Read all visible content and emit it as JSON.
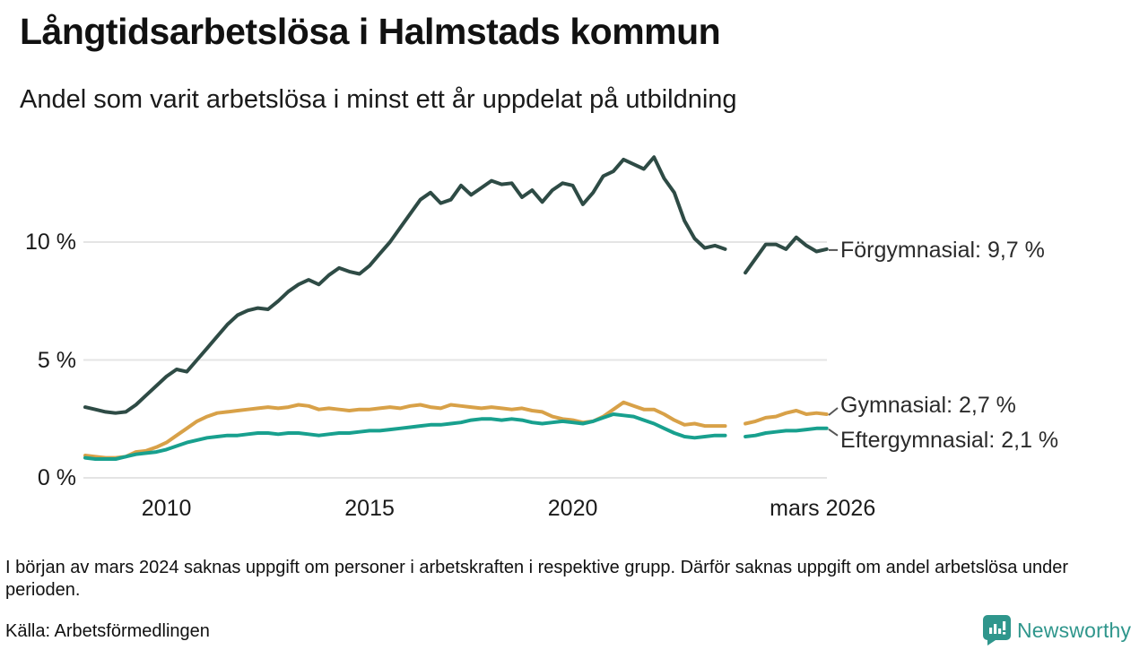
{
  "header": {
    "title": "Långtidsarbetslösa i Halmstads kommun",
    "subtitle": "Andel som varit arbetslösa i minst ett år uppdelat på utbildning"
  },
  "chart_data": {
    "type": "line",
    "x_axis": {
      "unit": "year",
      "start": 2008.0,
      "step": 0.25,
      "end": 2026.25,
      "ticks": [
        {
          "value": 2010,
          "label": "2010"
        },
        {
          "value": 2015,
          "label": "2015"
        },
        {
          "value": 2020,
          "label": "2020"
        },
        {
          "value": 2026.15,
          "label": "mars 2026"
        }
      ]
    },
    "y_axis": {
      "unit": "%",
      "min": 0,
      "max": 14.2,
      "ticks": [
        {
          "value": 0,
          "label": "0 %"
        },
        {
          "value": 5,
          "label": "5 %"
        },
        {
          "value": 10,
          "label": "10 %"
        }
      ]
    },
    "grid": "horizontal",
    "gap_note": "values are null for early 2024 where data is missing",
    "series": [
      {
        "name": "Förgymnasial",
        "end_label": "Förgymnasial: 9,7 %",
        "end_value": "9,7 %",
        "color": "#2e4b45",
        "values": [
          3.0,
          2.9,
          2.8,
          2.75,
          2.8,
          3.1,
          3.5,
          3.9,
          4.3,
          4.6,
          4.5,
          5.0,
          5.5,
          6.0,
          6.5,
          6.9,
          7.1,
          7.2,
          7.15,
          7.5,
          7.9,
          8.2,
          8.4,
          8.2,
          8.6,
          8.9,
          8.75,
          8.65,
          9.0,
          9.5,
          10.0,
          10.6,
          11.2,
          11.8,
          12.1,
          11.65,
          11.8,
          12.4,
          12.0,
          12.3,
          12.6,
          12.45,
          12.5,
          11.9,
          12.2,
          11.7,
          12.2,
          12.5,
          12.4,
          11.6,
          12.1,
          12.8,
          13.0,
          13.5,
          13.3,
          13.1,
          13.6,
          12.7,
          12.1,
          10.9,
          10.15,
          9.75,
          9.85,
          9.7,
          null,
          8.7,
          9.3,
          9.9,
          9.9,
          9.7,
          10.2,
          9.85,
          9.6,
          9.7
        ]
      },
      {
        "name": "Gymnasial",
        "end_label": "Gymnasial: 2,7 %",
        "end_value": "2,7 %",
        "color": "#d8a148",
        "values": [
          0.95,
          0.9,
          0.85,
          0.85,
          0.9,
          1.1,
          1.15,
          1.3,
          1.5,
          1.8,
          2.1,
          2.4,
          2.6,
          2.75,
          2.8,
          2.85,
          2.9,
          2.95,
          3.0,
          2.95,
          3.0,
          3.1,
          3.05,
          2.9,
          2.95,
          2.9,
          2.85,
          2.9,
          2.9,
          2.95,
          3.0,
          2.95,
          3.05,
          3.1,
          3.0,
          2.95,
          3.1,
          3.05,
          3.0,
          2.95,
          3.0,
          2.95,
          2.9,
          2.95,
          2.85,
          2.8,
          2.6,
          2.5,
          2.45,
          2.35,
          2.4,
          2.6,
          2.9,
          3.2,
          3.05,
          2.9,
          2.9,
          2.7,
          2.45,
          2.25,
          2.3,
          2.2,
          2.2,
          2.2,
          null,
          2.3,
          2.4,
          2.55,
          2.6,
          2.75,
          2.85,
          2.7,
          2.75,
          2.7
        ]
      },
      {
        "name": "Eftergymnasial",
        "end_label": "Eftergymnasial: 2,1 %",
        "end_value": "2,1 %",
        "color": "#18a08e",
        "values": [
          0.85,
          0.8,
          0.8,
          0.8,
          0.9,
          1.0,
          1.05,
          1.1,
          1.2,
          1.35,
          1.5,
          1.6,
          1.7,
          1.75,
          1.8,
          1.8,
          1.85,
          1.9,
          1.9,
          1.85,
          1.9,
          1.9,
          1.85,
          1.8,
          1.85,
          1.9,
          1.9,
          1.95,
          2.0,
          2.0,
          2.05,
          2.1,
          2.15,
          2.2,
          2.25,
          2.25,
          2.3,
          2.35,
          2.45,
          2.5,
          2.5,
          2.45,
          2.5,
          2.45,
          2.35,
          2.3,
          2.35,
          2.4,
          2.35,
          2.3,
          2.4,
          2.55,
          2.7,
          2.65,
          2.6,
          2.45,
          2.3,
          2.1,
          1.9,
          1.75,
          1.7,
          1.75,
          1.8,
          1.8,
          null,
          1.75,
          1.8,
          1.9,
          1.95,
          2.0,
          2.0,
          2.05,
          2.1,
          2.1
        ]
      }
    ],
    "title": "Långtidsarbetslösa i Halmstads kommun",
    "subtitle": "Andel som varit arbetslösa i minst ett år uppdelat på utbildning",
    "grid_color": "#e4e4e4",
    "leader_dash_color": "#555555"
  },
  "footnote": {
    "text": "I början av mars 2024 saknas uppgift om personer i arbetskraften i respektive grupp. Därför saknas uppgift om andel arbetslösa under perioden."
  },
  "source": {
    "text": "Källa: Arbetsförmedlingen"
  },
  "branding": {
    "name": "Newsworthy",
    "color": "#2f968c"
  }
}
